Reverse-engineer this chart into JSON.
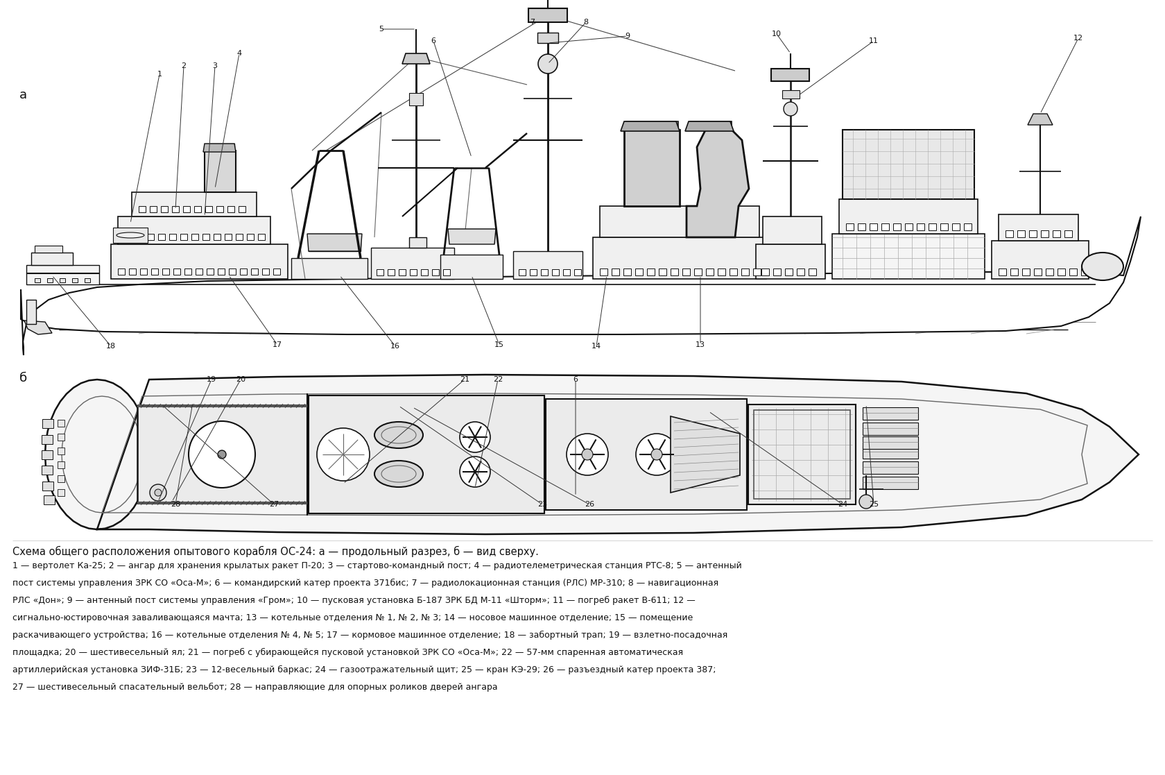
{
  "bg": "#ffffff",
  "title_caption": "Схема общего расположения опытового корабля ОС-24: а — продольный разрез, б — вид сверху.",
  "legend_lines": [
    "1 — вертолет Ка-25; 2 — ангар для хранения крылатых ракет П-20; 3 — стартово-командный пост; 4 — радиотелеметрическая станция РТС-8; 5 — антенный",
    "пост системы управления ЗРК СО «Оса-М»; 6 — командирский катер проекта 371бис; 7 — радиолокационная станция (РЛС) МР-310; 8 — навигационная",
    "РЛС «Дон»; 9 — антенный пост системы управления «Гром»; 10 — пусковая установка Б-187 ЗРК БД М-11 «Шторм»; 11 — погреб ракет В-611; 12 —",
    "сигнально-юстировочная заваливающаяся мачта; 13 — котельные отделения № 1, № 2, № 3; 14 — носовое машинное отделение; 15 — помещение",
    "раскачивающего устройства; 16 — котельные отделения № 4, № 5; 17 — кормовое машинное отделение; 18 — забортный трап; 19 — взлетно-посадочная",
    "площадка; 20 — шестивесельный ял; 21 — погреб с убирающейся пусковой установкой ЗРК СО «Оса-М»; 22 — 57-мм спаренная автоматическая",
    "артиллерийская установка ЗИФ-31Б; 23 — 12-весельный баркас; 24 — газоотражательный щит; 25 — кран КЭ-29; 26 — разъездный катер проекта 387;",
    "27 — шестивесельный спасательный вельбот; 28 — направляющие для опорных роликов дверей ангара"
  ],
  "lc": "#111111",
  "label_a": "а",
  "label_b": "б"
}
